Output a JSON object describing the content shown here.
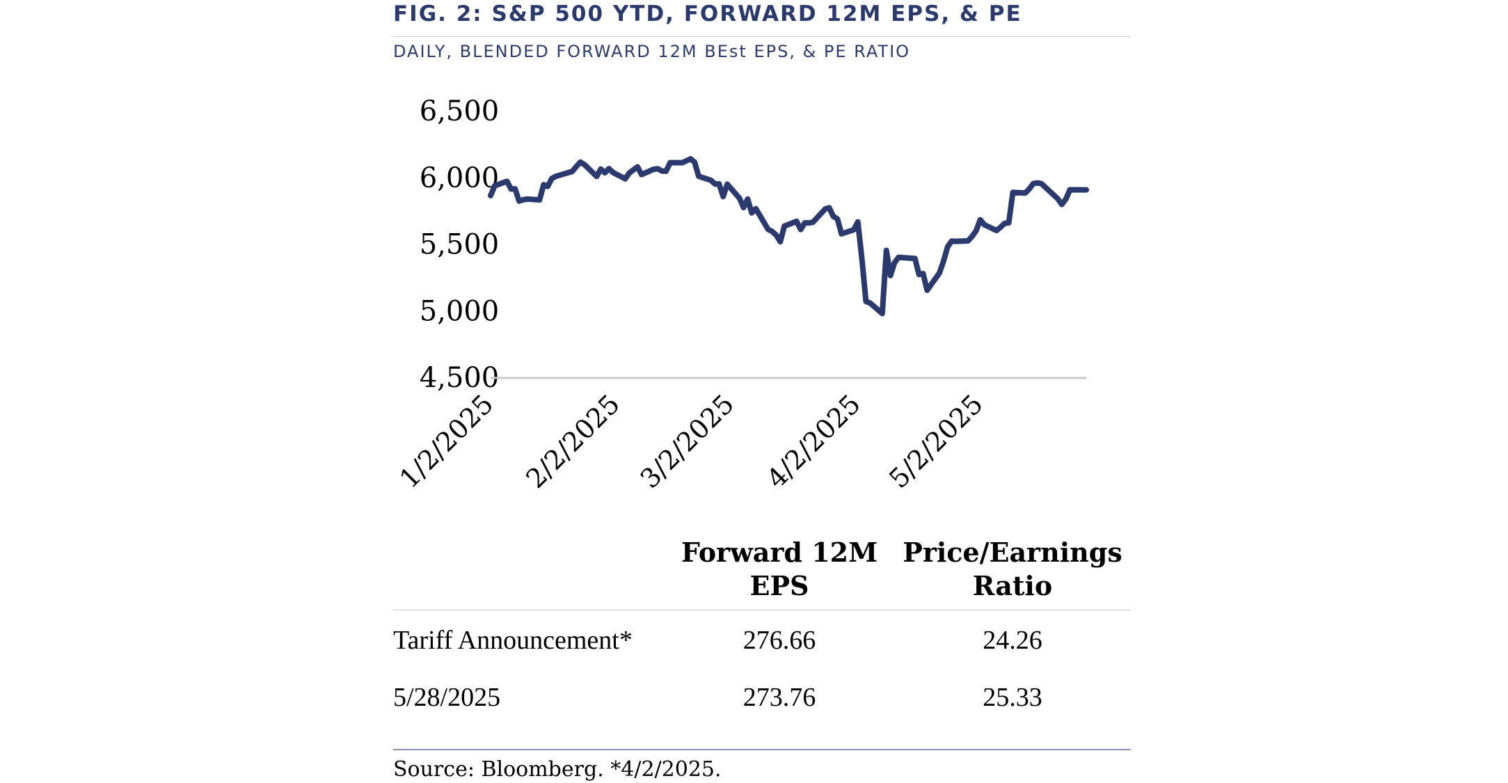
{
  "title": "FIG. 2: S&P 500 YTD, FORWARD 12M EPS, & PE",
  "subtitle": "DAILY, BLENDED FORWARD 12M BEst EPS, & PE RATIO",
  "colors": {
    "title": "#2b3a6e",
    "line": "#2b3a6e",
    "axis": "#c9c9c9"
  },
  "chart_data": {
    "type": "line",
    "title": "",
    "xlabel": "",
    "ylabel": "",
    "ylim": [
      4500,
      6500
    ],
    "y_ticks": [
      "6,500",
      "6,000",
      "5,500",
      "5,000",
      "4,500"
    ],
    "x_tick_labels": [
      "1/2/2025",
      "2/2/2025",
      "3/2/2025",
      "4/2/2025",
      "5/2/2025"
    ],
    "x_tick_days": [
      0,
      31,
      59,
      90,
      120
    ],
    "x_range_days": [
      0,
      146
    ],
    "series": [
      {
        "name": "S&P 500",
        "x_days": [
          0,
          1,
          4,
          5,
          6,
          7,
          8,
          9,
          12,
          13,
          14,
          15,
          16,
          20,
          21,
          22,
          23,
          26,
          27,
          28,
          29,
          30,
          33,
          34,
          35,
          36,
          37,
          40,
          41,
          42,
          43,
          44,
          47,
          48,
          49,
          50,
          51,
          54,
          55,
          56,
          57,
          58,
          61,
          62,
          63,
          64,
          65,
          68,
          69,
          70,
          71,
          72,
          75,
          76,
          77,
          78,
          79,
          82,
          83,
          84,
          85,
          86,
          89,
          90,
          91,
          92,
          93,
          96,
          97,
          98,
          99,
          100,
          104,
          105,
          106,
          107,
          110,
          111,
          112,
          113,
          114,
          117,
          118,
          119,
          120,
          121,
          124,
          125,
          126,
          127,
          128,
          131,
          132,
          133,
          134,
          135,
          139,
          140,
          141,
          142,
          146
        ],
        "values": [
          5868,
          5942,
          5975,
          5918,
          5918,
          5827,
          5837,
          5842,
          5836,
          5950,
          5937,
          5996,
          6013,
          6049,
          6086,
          6119,
          6101,
          6012,
          6067,
          6039,
          6071,
          6041,
          5994,
          6038,
          6061,
          6084,
          6026,
          6066,
          6069,
          6052,
          6051,
          6115,
          6115,
          6129,
          6144,
          6118,
          6013,
          5983,
          5955,
          5956,
          5861,
          5954,
          5849,
          5778,
          5842,
          5738,
          5770,
          5615,
          5599,
          5572,
          5522,
          5639,
          5675,
          5614,
          5663,
          5663,
          5668,
          5768,
          5777,
          5712,
          5693,
          5581,
          5611,
          5671,
          5396,
          5074,
          5062,
          4983,
          5457,
          5268,
          5364,
          5405,
          5396,
          5276,
          5283,
          5158,
          5287,
          5375,
          5484,
          5526,
          5525,
          5528,
          5561,
          5604,
          5687,
          5650,
          5606,
          5631,
          5660,
          5664,
          5892,
          5887,
          5916,
          5958,
          5963,
          5958,
          5844,
          5802,
          5842,
          5912,
          5911
        ]
      }
    ]
  },
  "table": {
    "headers": [
      {
        "line1": "Forward 12M",
        "line2": "EPS"
      },
      {
        "line1": "Price/Earnings",
        "line2": "Ratio"
      }
    ],
    "rows": [
      {
        "label": "Tariff Announcement*",
        "eps": "276.66",
        "pe": "24.26"
      },
      {
        "label": "5/28/2025",
        "eps": "273.76",
        "pe": "25.33"
      }
    ]
  },
  "source": "Source: Bloomberg. *4/2/2025."
}
